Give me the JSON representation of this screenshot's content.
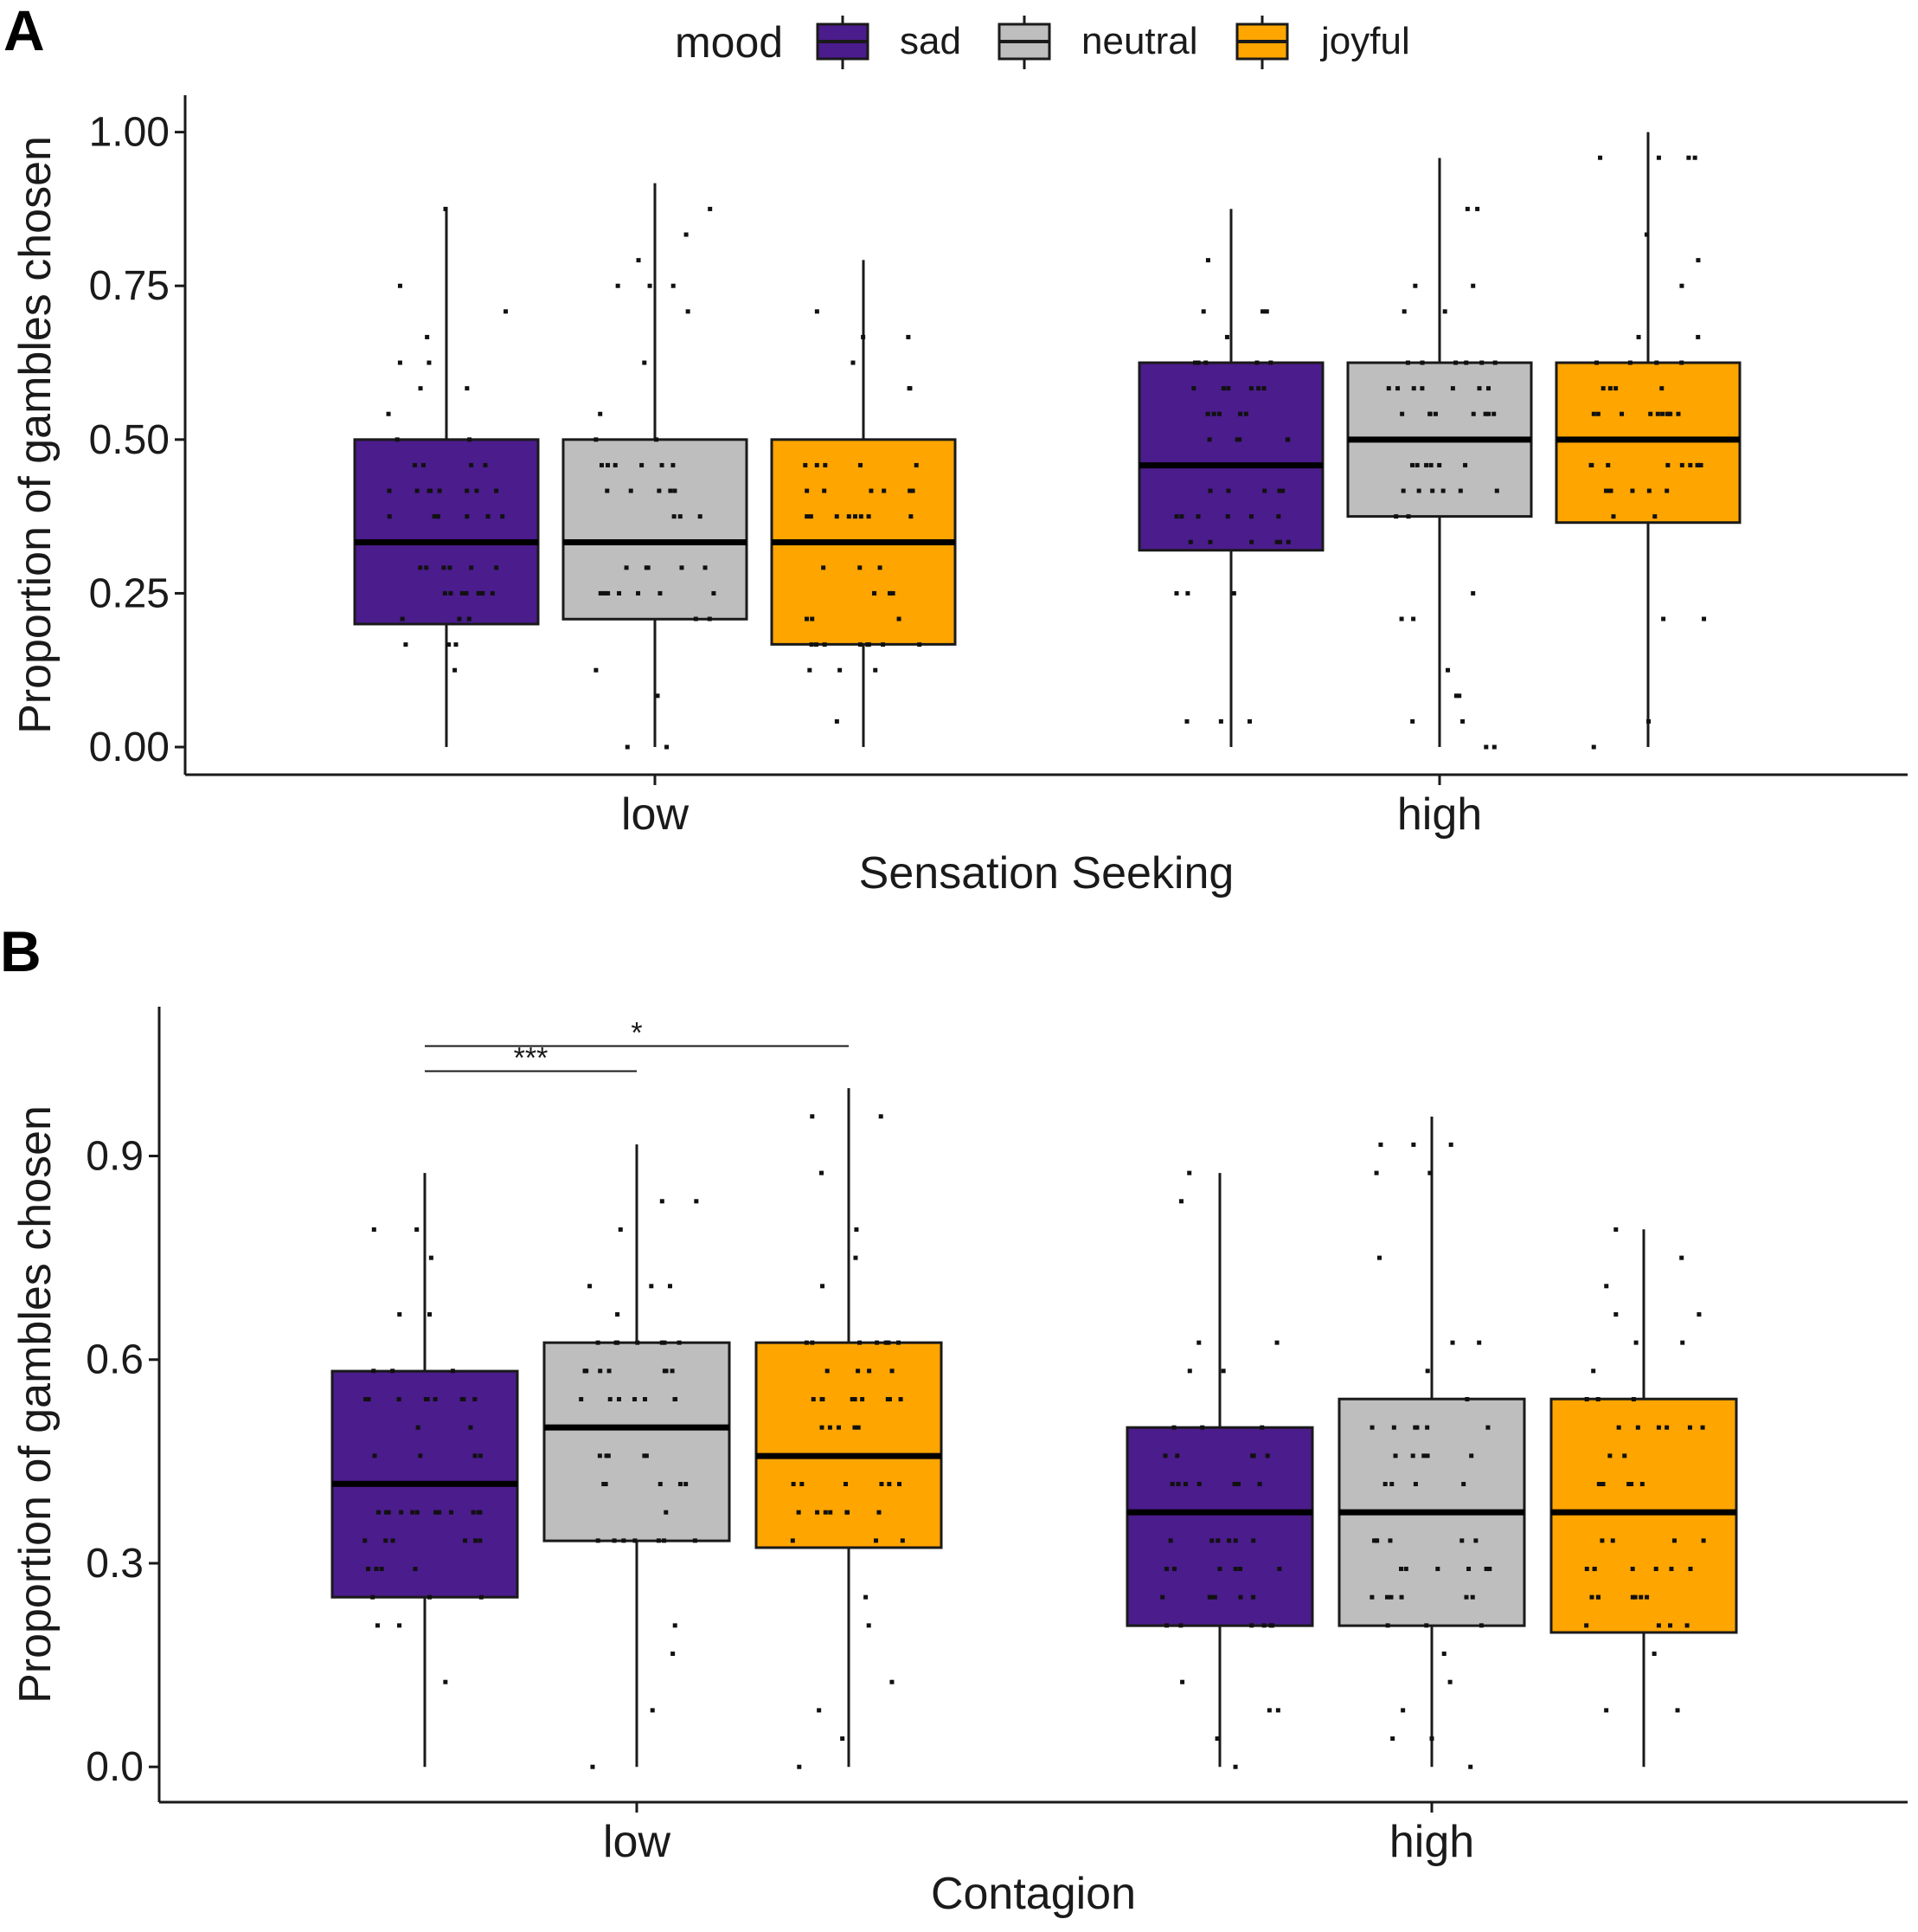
{
  "figure": {
    "panel_labels": [
      "A",
      "B"
    ]
  },
  "legend": {
    "title": "mood",
    "items": [
      {
        "label": "sad",
        "color": "#4B1C8C"
      },
      {
        "label": "neutral",
        "color": "#BEBEBE"
      },
      {
        "label": "joyful",
        "color": "#FFA500"
      }
    ]
  },
  "chart_data": [
    {
      "panel": "A",
      "type": "boxplot",
      "xlabel": "Sensation Seeking",
      "ylabel": "Proportion of gambles chosen",
      "ylim": [
        -0.045,
        1.06
      ],
      "yticks": [
        0,
        0.25,
        0.5,
        0.75,
        1.0
      ],
      "ytick_labels": [
        "0.00",
        "0.25",
        "0.50",
        "0.75",
        "1.00"
      ],
      "categories": [
        "low",
        "high"
      ],
      "series": [
        {
          "name": "sad",
          "boxes": [
            {
              "q1": 0.2,
              "median": 0.333,
              "q3": 0.5,
              "whisker_low": 0.0,
              "whisker_high": 0.875
            },
            {
              "q1": 0.32,
              "median": 0.458,
              "q3": 0.625,
              "whisker_low": 0.0,
              "whisker_high": 0.875
            }
          ]
        },
        {
          "name": "neutral",
          "boxes": [
            {
              "q1": 0.208,
              "median": 0.333,
              "q3": 0.5,
              "whisker_low": 0.0,
              "whisker_high": 0.917
            },
            {
              "q1": 0.375,
              "median": 0.5,
              "q3": 0.625,
              "whisker_low": 0.0,
              "whisker_high": 0.958
            }
          ]
        },
        {
          "name": "joyful",
          "boxes": [
            {
              "q1": 0.167,
              "median": 0.333,
              "q3": 0.5,
              "whisker_low": 0.0,
              "whisker_high": 0.792
            },
            {
              "q1": 0.365,
              "median": 0.5,
              "q3": 0.625,
              "whisker_low": 0.0,
              "whisker_high": 1.0
            }
          ]
        }
      ],
      "annotations": []
    },
    {
      "panel": "B",
      "type": "boxplot",
      "xlabel": "Contagion",
      "ylabel": "Proportion of gambles chosen",
      "ylim": [
        -0.052,
        1.12
      ],
      "yticks": [
        0,
        0.3,
        0.6,
        0.9
      ],
      "ytick_labels": [
        "0.0",
        "0.3",
        "0.6",
        "0.9"
      ],
      "categories": [
        "low",
        "high"
      ],
      "series": [
        {
          "name": "sad",
          "boxes": [
            {
              "q1": 0.25,
              "median": 0.417,
              "q3": 0.583,
              "whisker_low": 0.0,
              "whisker_high": 0.875
            },
            {
              "q1": 0.208,
              "median": 0.375,
              "q3": 0.5,
              "whisker_low": 0.0,
              "whisker_high": 0.875
            }
          ]
        },
        {
          "name": "neutral",
          "boxes": [
            {
              "q1": 0.333,
              "median": 0.5,
              "q3": 0.625,
              "whisker_low": 0.0,
              "whisker_high": 0.917
            },
            {
              "q1": 0.208,
              "median": 0.375,
              "q3": 0.542,
              "whisker_low": 0.0,
              "whisker_high": 0.958
            }
          ]
        },
        {
          "name": "joyful",
          "boxes": [
            {
              "q1": 0.323,
              "median": 0.458,
              "q3": 0.625,
              "whisker_low": 0.0,
              "whisker_high": 1.0
            },
            {
              "q1": 0.198,
              "median": 0.375,
              "q3": 0.542,
              "whisker_low": 0.0,
              "whisker_high": 0.792
            }
          ]
        }
      ],
      "annotations": [
        {
          "category": "low",
          "from": "sad",
          "to": "neutral",
          "label": "***",
          "y": 1.025
        },
        {
          "category": "low",
          "from": "sad",
          "to": "joyful",
          "label": "*",
          "y": 1.062
        }
      ]
    }
  ]
}
